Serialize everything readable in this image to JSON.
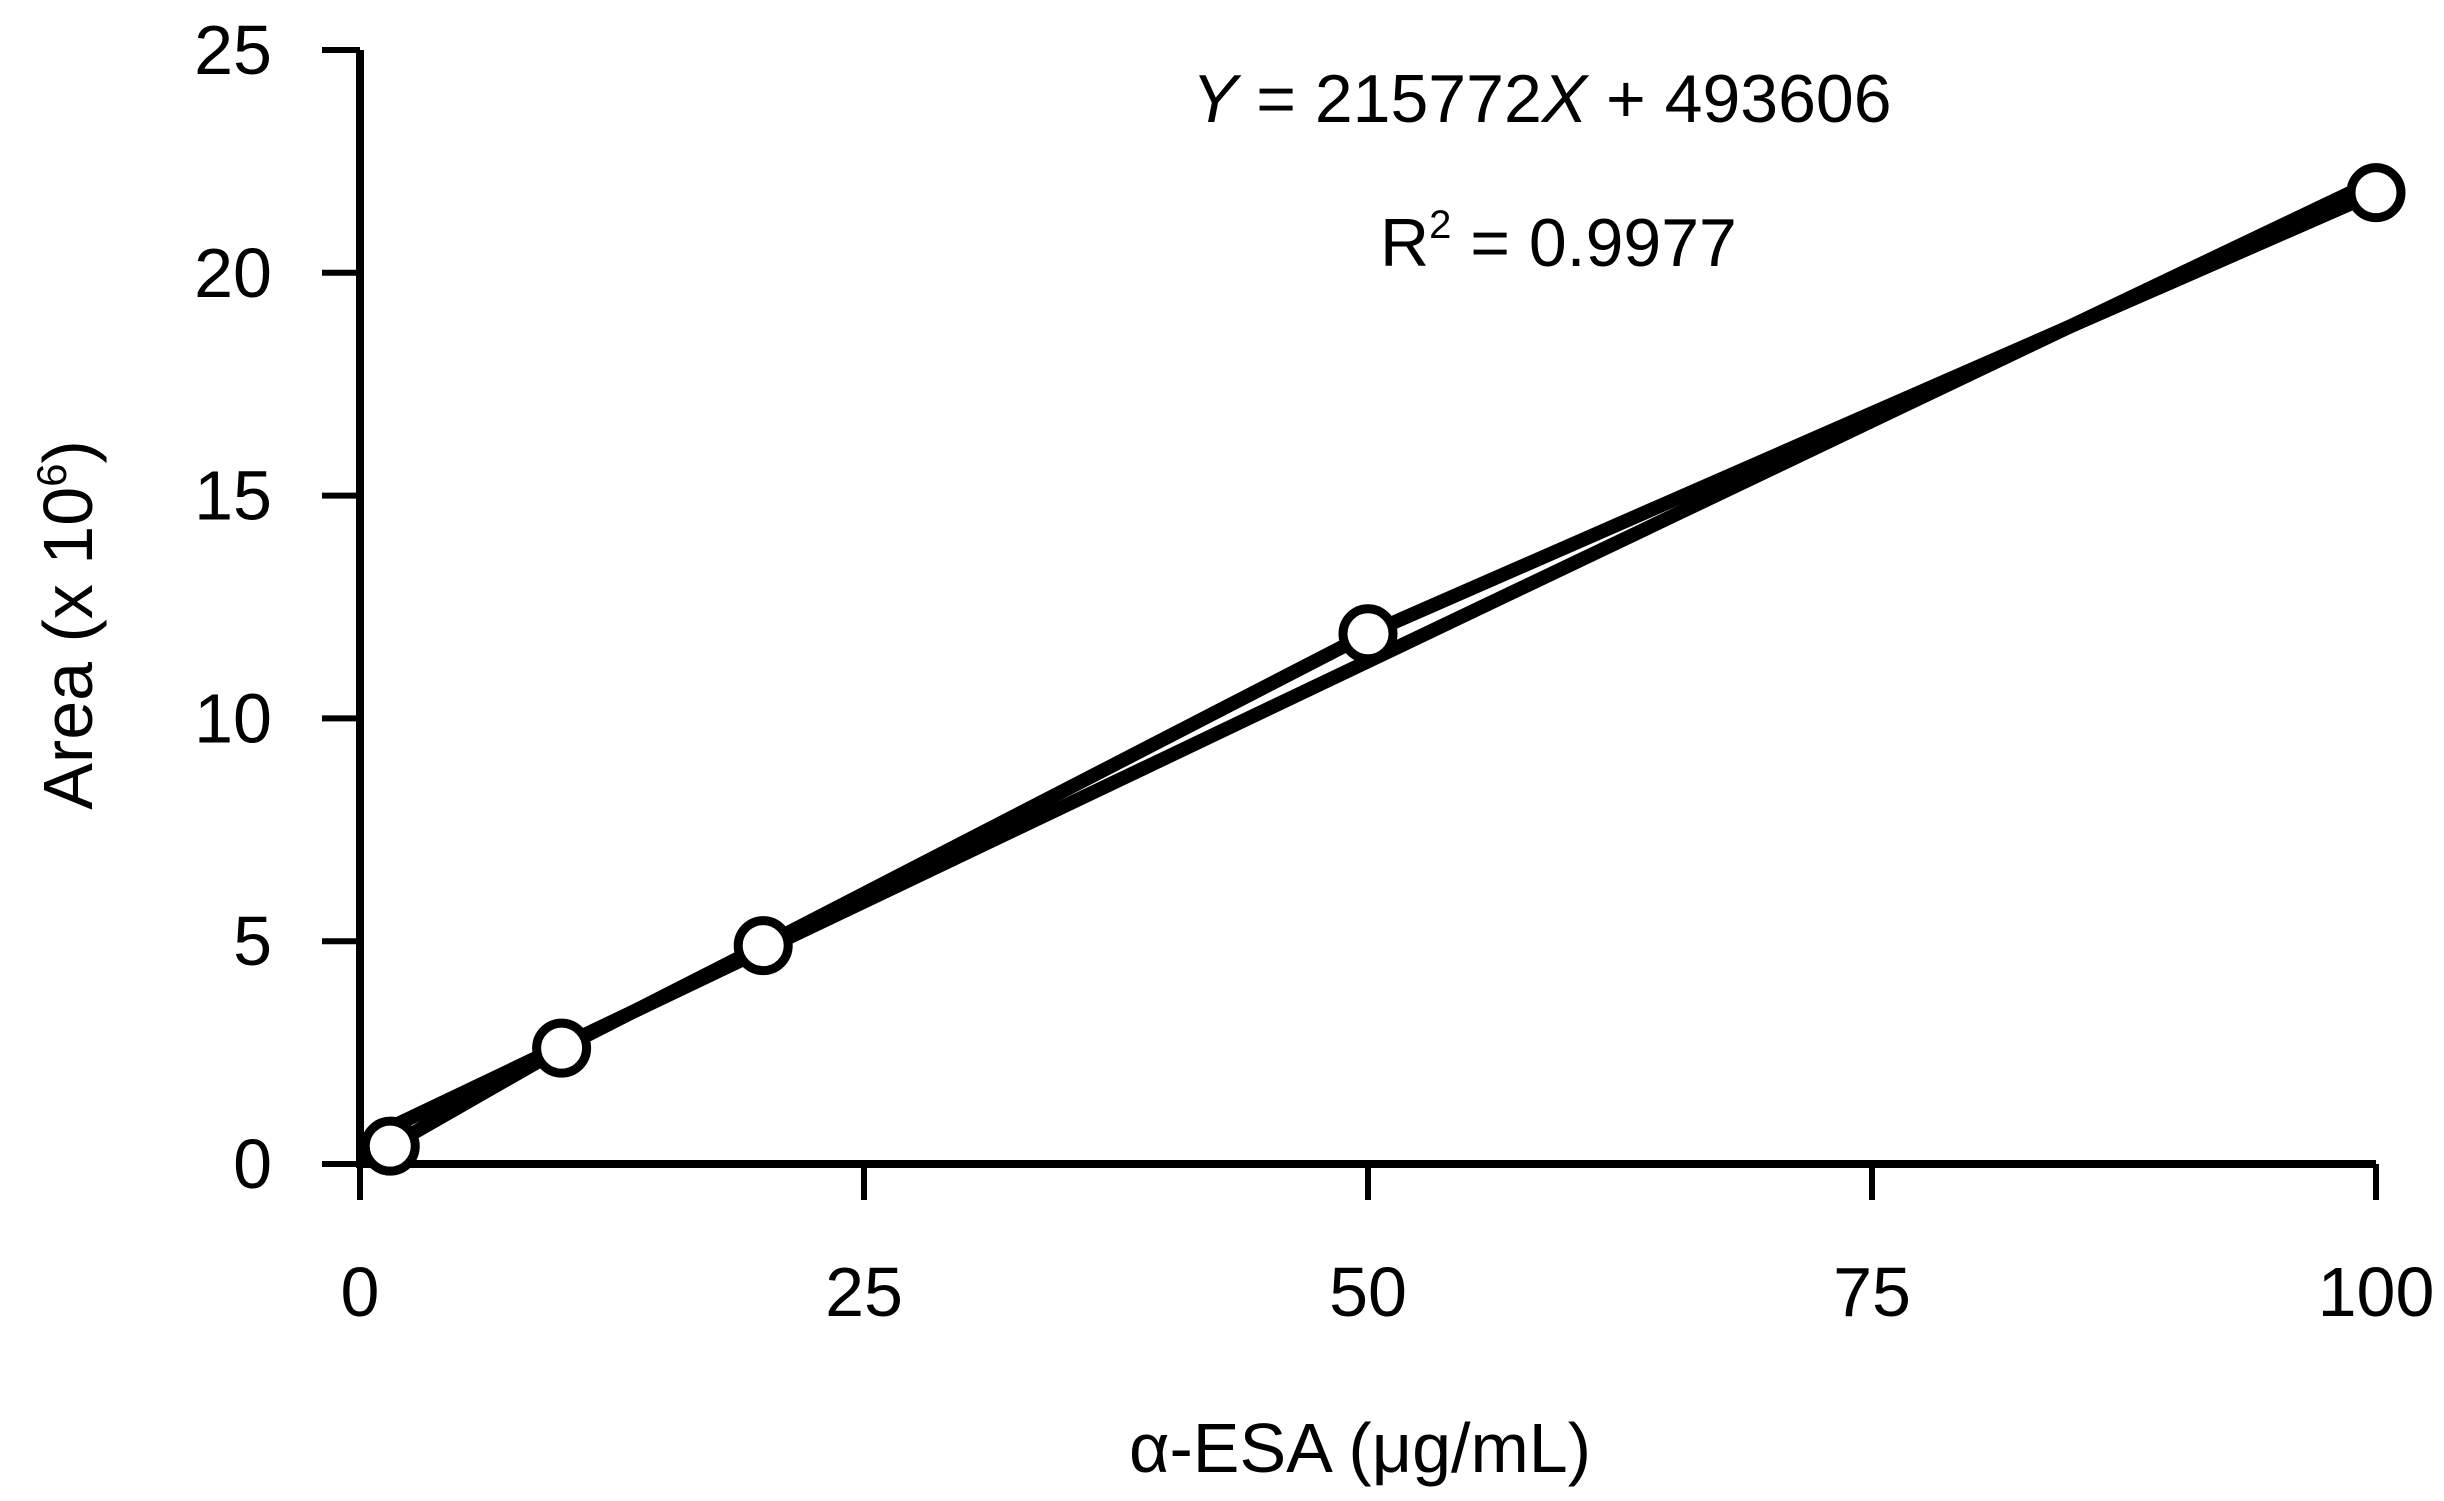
{
  "chart_data": {
    "type": "scatter",
    "title": "",
    "xlabel": {
      "greek": "α",
      "text": "-ESA (",
      "mu": "μ",
      "unit": "g/mL)"
    },
    "ylabel": {
      "text": "Area (x 10",
      "sup": "6",
      "close": ")"
    },
    "xlim": [
      0,
      100
    ],
    "ylim": [
      0,
      25
    ],
    "xticks": [
      0,
      25,
      50,
      75,
      100
    ],
    "yticks": [
      0,
      5,
      10,
      15,
      20,
      25
    ],
    "grid": false,
    "legend": "none",
    "colors": {
      "line": "#000000",
      "marker_fill": "#ffffff",
      "marker_edge": "#000000"
    },
    "series": [
      {
        "x": [
          1.5,
          10,
          20,
          50,
          100
        ],
        "y": [
          0.4,
          2.6,
          4.9,
          11.9,
          21.8
        ]
      }
    ],
    "fit": {
      "slope": 0.215772,
      "intercept": 0.493606
    },
    "annotations": {
      "equation": {
        "y": "Y",
        "eq": " = 215772",
        "x": "X",
        "rest": " + 493606"
      },
      "r2": {
        "r": "R",
        "sup": "2",
        "rest": " = 0.9977"
      }
    }
  }
}
